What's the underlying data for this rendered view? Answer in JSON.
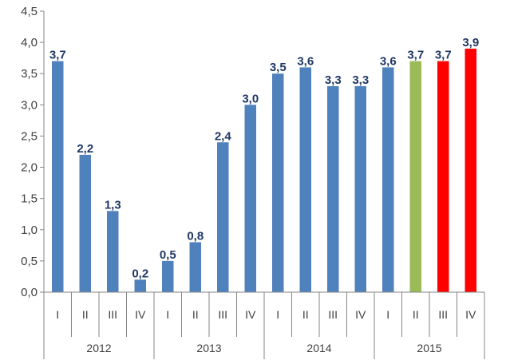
{
  "chart_data": {
    "type": "bar",
    "title": "",
    "xlabel": "",
    "ylabel": "",
    "ylim": [
      0,
      4.5
    ],
    "yticks": [
      "0,0",
      "0,5",
      "1,0",
      "1,5",
      "2,0",
      "2,5",
      "3,0",
      "3,5",
      "4,0",
      "4,5"
    ],
    "grid": false,
    "legend": "none",
    "categories": [
      "I",
      "II",
      "III",
      "IV",
      "I",
      "II",
      "III",
      "IV",
      "I",
      "II",
      "III",
      "IV",
      "I",
      "II",
      "III",
      "IV"
    ],
    "groups": [
      "2012",
      "2013",
      "2014",
      "2015"
    ],
    "values": [
      3.7,
      2.2,
      1.3,
      0.2,
      0.5,
      0.8,
      2.4,
      3.0,
      3.5,
      3.6,
      3.3,
      3.3,
      3.6,
      3.7,
      3.7,
      3.9
    ],
    "labels": [
      "3,7",
      "2,2",
      "1,3",
      "0,2",
      "0,5",
      "0,8",
      "2,4",
      "3,0",
      "3,5",
      "3,6",
      "3,3",
      "3,3",
      "3,6",
      "3,7",
      "3,7",
      "3,9"
    ],
    "colors": [
      "#4f81bd",
      "#4f81bd",
      "#4f81bd",
      "#4f81bd",
      "#4f81bd",
      "#4f81bd",
      "#4f81bd",
      "#4f81bd",
      "#4f81bd",
      "#4f81bd",
      "#4f81bd",
      "#4f81bd",
      "#4f81bd",
      "#9bbb59",
      "#ff0000",
      "#ff0000"
    ],
    "label_color": "#1f3864",
    "axis_color": "#868686"
  }
}
